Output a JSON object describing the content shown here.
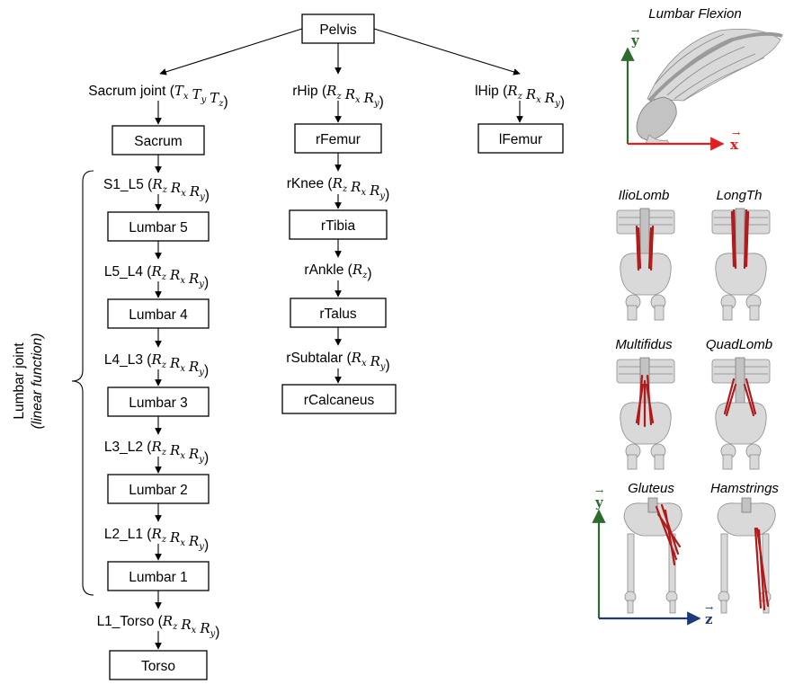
{
  "tree": {
    "root": "Pelvis",
    "nodes": {
      "pelvis": "Pelvis",
      "sacrum": "Sacrum",
      "lumbar5": "Lumbar 5",
      "lumbar4": "Lumbar 4",
      "lumbar3": "Lumbar 3",
      "lumbar2": "Lumbar 2",
      "lumbar1": "Lumbar 1",
      "torso": "Torso",
      "rfemur": "rFemur",
      "rtibia": "rTibia",
      "rtalus": "rTalus",
      "rcalcaneus": "rCalcaneus",
      "lfemur": "lFemur"
    },
    "joints": {
      "sacrum_joint": {
        "name": "Sacrum joint",
        "dofs": [
          [
            "T",
            "x"
          ],
          [
            "T",
            "y"
          ],
          [
            "T",
            "z"
          ]
        ]
      },
      "rhip": {
        "name": "rHip",
        "dofs": [
          [
            "R",
            "z"
          ],
          [
            "R",
            "x"
          ],
          [
            "R",
            "y"
          ]
        ]
      },
      "lhip": {
        "name": "lHip",
        "dofs": [
          [
            "R",
            "z"
          ],
          [
            "R",
            "x"
          ],
          [
            "R",
            "y"
          ]
        ]
      },
      "s1_l5": {
        "name": "S1_L5",
        "dofs": [
          [
            "R",
            "z"
          ],
          [
            "R",
            "x"
          ],
          [
            "R",
            "y"
          ]
        ]
      },
      "l5_l4": {
        "name": "L5_L4",
        "dofs": [
          [
            "R",
            "z"
          ],
          [
            "R",
            "x"
          ],
          [
            "R",
            "y"
          ]
        ]
      },
      "l4_l3": {
        "name": "L4_L3",
        "dofs": [
          [
            "R",
            "z"
          ],
          [
            "R",
            "x"
          ],
          [
            "R",
            "y"
          ]
        ]
      },
      "l3_l2": {
        "name": "L3_L2",
        "dofs": [
          [
            "R",
            "z"
          ],
          [
            "R",
            "x"
          ],
          [
            "R",
            "y"
          ]
        ]
      },
      "l2_l1": {
        "name": "L2_L1",
        "dofs": [
          [
            "R",
            "z"
          ],
          [
            "R",
            "x"
          ],
          [
            "R",
            "y"
          ]
        ]
      },
      "l1_torso": {
        "name": "L1_Torso",
        "dofs": [
          [
            "R",
            "z"
          ],
          [
            "R",
            "x"
          ],
          [
            "R",
            "y"
          ]
        ]
      },
      "rknee": {
        "name": "rKnee",
        "dofs": [
          [
            "R",
            "z"
          ],
          [
            "R",
            "x"
          ],
          [
            "R",
            "y"
          ]
        ]
      },
      "rankle": {
        "name": "rAnkle",
        "dofs": [
          [
            "R",
            "z"
          ]
        ]
      },
      "rsubtalar": {
        "name": "rSubtalar",
        "dofs": [
          [
            "R",
            "x"
          ],
          [
            "R",
            "y"
          ]
        ]
      }
    },
    "brace_label": {
      "line1": "Lumbar joint",
      "line2": "(linear function)"
    }
  },
  "panels": {
    "lumbar_flexion": {
      "title": "Lumbar Flexion",
      "axis_x": "x",
      "axis_y": "y",
      "axis_x_color": "#e02020",
      "axis_y_color": "#2e6b2e"
    },
    "muscles": [
      {
        "key": "iliolomb",
        "title": "IlioLomb"
      },
      {
        "key": "longth",
        "title": "LongTh"
      },
      {
        "key": "multifidus",
        "title": "Multifidus"
      },
      {
        "key": "quadlomb",
        "title": "QuadLomb"
      },
      {
        "key": "gluteus",
        "title": "Gluteus"
      },
      {
        "key": "hamstrings",
        "title": "Hamstrings"
      }
    ],
    "legs_axes": {
      "axis_y": "y",
      "axis_z": "z",
      "axis_y_color": "#2e6b2e",
      "axis_z_color": "#1f3a7a"
    },
    "muscle_color": "#b01a1a",
    "bone_color": "#d9d9d9"
  }
}
